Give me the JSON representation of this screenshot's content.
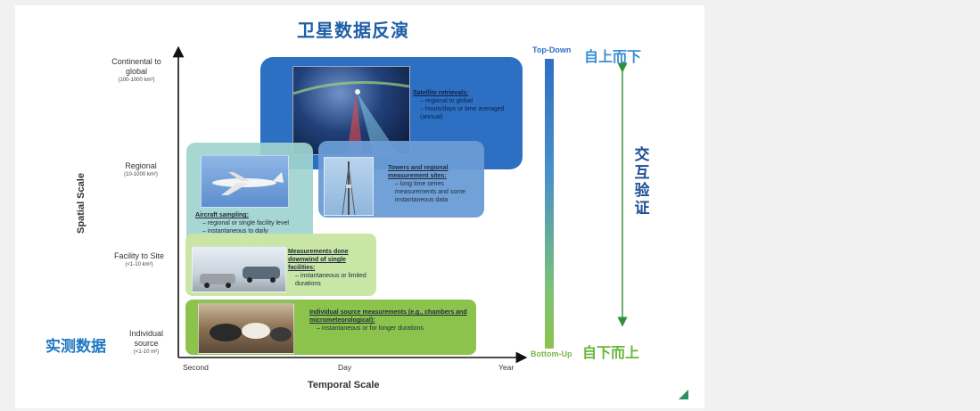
{
  "title": "卫星数据反演",
  "y_axis": {
    "title": "Spatial Scale",
    "levels": [
      {
        "label": "Continental to global",
        "sub": "(100-1000 km²)"
      },
      {
        "label": "Regional",
        "sub": "(10-1000 km²)"
      },
      {
        "label": "Facility to Site",
        "sub": "(<1-10 km²)"
      },
      {
        "label": "Individual source",
        "sub": "(<1-10 m²)"
      }
    ]
  },
  "x_axis": {
    "title": "Temporal Scale",
    "ticks": [
      "Second",
      "Day",
      "Year"
    ]
  },
  "boxes": {
    "satellite": {
      "heading": "Satellite retrievals:",
      "items": [
        "regional to global",
        "hours/days or time averaged (annual)"
      ]
    },
    "towers": {
      "heading": "Towers and regional measurement sites:",
      "items": [
        "long time series measurements and some instantaneous data"
      ]
    },
    "aircraft": {
      "heading": "Aircraft sampling:",
      "items": [
        "regional or single facility level",
        "instantaneous to daily"
      ]
    },
    "facility": {
      "heading": "Measurements done downwind of single facilities:",
      "items": [
        "instantaneous or limited durations"
      ]
    },
    "individual": {
      "heading": "Individual source measurements (e.g., chambers and micrometeorological):",
      "items": [
        "instantaneous or for longer durations"
      ]
    }
  },
  "gradient": {
    "top_en": "Top-Down",
    "bottom_en": "Bottom-Up",
    "top_cn": "自上而下",
    "bottom_cn": "自下而上",
    "colors": [
      "#2f6fc4",
      "#8cc34c"
    ]
  },
  "cross_validation": "交互验证",
  "measured_data": "实测数据",
  "colors": {
    "title": "#1f5fa8",
    "satellite_box": "#2d6fc3",
    "aircraft_box": "#9fd4cf",
    "individual_box": "#8cc34c"
  }
}
